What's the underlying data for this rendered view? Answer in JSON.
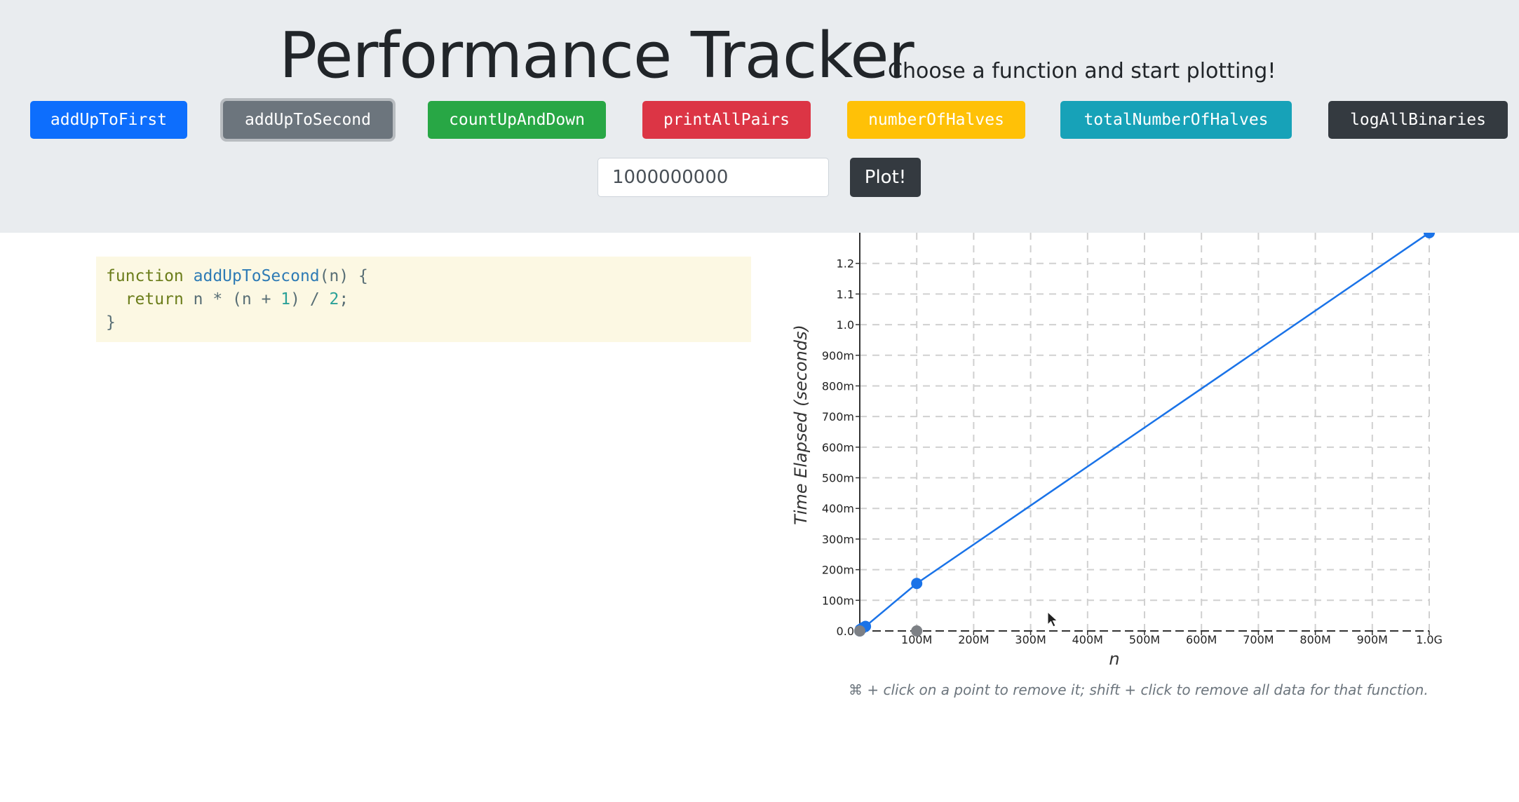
{
  "header": {
    "title": "Performance Tracker",
    "subtitle": "Choose a function and start plotting!"
  },
  "functions": [
    {
      "label": "addUpToFirst",
      "color": "#0d6efd"
    },
    {
      "label": "addUpToSecond",
      "color": "#6c757d",
      "active": true
    },
    {
      "label": "countUpAndDown",
      "color": "#28a745"
    },
    {
      "label": "printAllPairs",
      "color": "#dc3545"
    },
    {
      "label": "numberOfHalves",
      "color": "#ffc107"
    },
    {
      "label": "totalNumberOfHalves",
      "color": "#17a2b8"
    },
    {
      "label": "logAllBinaries",
      "color": "#343a40"
    }
  ],
  "controls": {
    "n_value": "1000000000",
    "plot_label": "Plot!"
  },
  "code": {
    "line1_kw": "function",
    "line1_fn": "addUpToSecond",
    "line1_rest": "(n) {",
    "line2_kw": "return",
    "line2_a": "n * (n + ",
    "line2_num1": "1",
    "line2_b": ") / ",
    "line2_num2": "2",
    "line2_c": ";",
    "line3": "}"
  },
  "hint": "⌘ + click on a point to remove it; shift + click to remove all data for that function.",
  "chart_data": {
    "type": "scatter",
    "xlabel": "n",
    "ylabel": "Time Elapsed (seconds)",
    "xlim": [
      0,
      1000000000
    ],
    "ylim": [
      0,
      1.3
    ],
    "x_ticks": [
      "100M",
      "200M",
      "300M",
      "400M",
      "500M",
      "600M",
      "700M",
      "800M",
      "900M",
      "1.0G"
    ],
    "y_ticks": [
      "0.0",
      "100m",
      "200m",
      "300m",
      "400m",
      "500m",
      "600m",
      "700m",
      "800m",
      "900m",
      "1.0",
      "1.1",
      "1.2"
    ],
    "grid": true,
    "series": [
      {
        "name": "addUpToFirst",
        "color": "#1a73e8",
        "line": true,
        "points": [
          [
            0,
            0
          ],
          [
            1000000,
            0.005
          ],
          [
            5000000,
            0.01
          ],
          [
            10000000,
            0.015
          ],
          [
            100000000,
            0.155
          ],
          [
            1000000000,
            1.3
          ]
        ]
      },
      {
        "name": "addUpToSecond",
        "color": "#7d8085",
        "line": false,
        "points": [
          [
            0,
            0
          ],
          [
            100000000,
            0
          ]
        ]
      }
    ]
  }
}
